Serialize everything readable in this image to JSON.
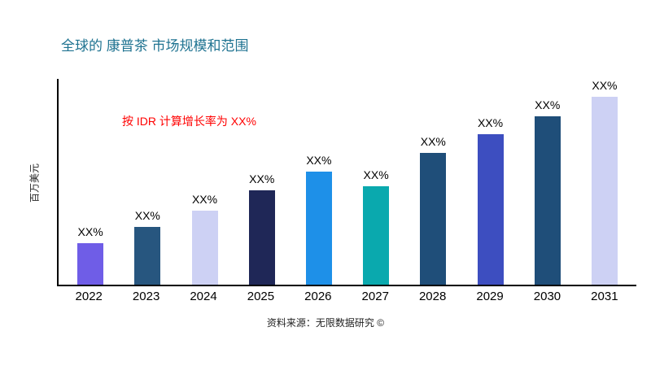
{
  "title": "全球的 康普茶 市场规模和范围",
  "annotation": "按 IDR 计算增长率为 XX%",
  "source": "资料来源：无限数据研究 ©",
  "colors": {
    "title": "#1F7391",
    "annotation": "#FF0000",
    "axis": "#000000"
  },
  "chart_data": {
    "type": "bar",
    "title": "全球的 康普茶 市场规模和范围",
    "xlabel": "",
    "ylabel": "百万美元",
    "categories": [
      "2022",
      "2023",
      "2024",
      "2025",
      "2026",
      "2027",
      "2028",
      "2029",
      "2030",
      "2031"
    ],
    "values": [
      20,
      28,
      36,
      46,
      55,
      48,
      64,
      73,
      82,
      92
    ],
    "values_unit": "percent-of-axis-estimated",
    "bar_labels": [
      "XX%",
      "XX%",
      "XX%",
      "XX%",
      "XX%",
      "XX%",
      "XX%",
      "XX%",
      "XX%",
      "XX%"
    ],
    "bar_colors": [
      "#6F5DE7",
      "#27567F",
      "#CDD1F4",
      "#1F2757",
      "#1E90E8",
      "#0AA9AE",
      "#1F4E79",
      "#3D4EC0",
      "#1F4E79",
      "#CDD1F4"
    ],
    "ylim": [
      0,
      100
    ],
    "grid": false,
    "legend": false,
    "annotation": "按 IDR 计算增长率为 XX%"
  }
}
